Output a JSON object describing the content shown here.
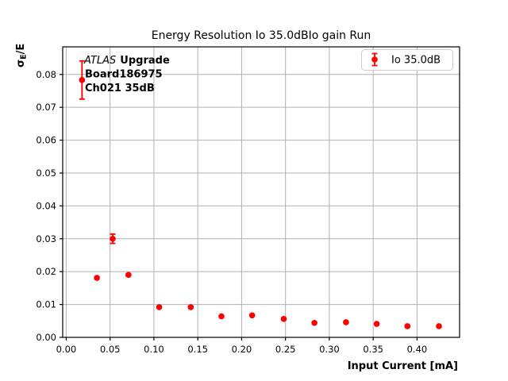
{
  "chart_data": {
    "type": "scatter",
    "title": "Energy Resolution Io 35.0dBIo gain Run",
    "xlabel": "Input Current [mA]",
    "ylabel": "σ_E/E",
    "ylabel_parts": {
      "base": "σ",
      "subscript": "E",
      "suffix": "/E"
    },
    "xlim": [
      -0.004,
      0.4485
    ],
    "ylim": [
      0,
      0.0884
    ],
    "xticks": [
      0.0,
      0.05,
      0.1,
      0.15,
      0.2,
      0.25,
      0.3,
      0.35,
      0.4
    ],
    "yticks": [
      0.0,
      0.01,
      0.02,
      0.03,
      0.04,
      0.05,
      0.06,
      0.07,
      0.08
    ],
    "xtick_labels": [
      "0.00",
      "0.05",
      "0.10",
      "0.15",
      "0.20",
      "0.25",
      "0.30",
      "0.35",
      "0.40"
    ],
    "ytick_labels": [
      "0.00",
      "0.01",
      "0.02",
      "0.03",
      "0.04",
      "0.05",
      "0.06",
      "0.07",
      "0.08"
    ],
    "grid": true,
    "legend": {
      "label": "Io 35.0dB",
      "position": "upper-right"
    },
    "series": [
      {
        "name": "Io 35.0dB",
        "color": "#ff0000",
        "marker": "circle",
        "x": [
          0.018,
          0.035,
          0.053,
          0.071,
          0.106,
          0.142,
          0.177,
          0.212,
          0.248,
          0.283,
          0.319,
          0.354,
          0.389,
          0.425
        ],
        "y": [
          0.0783,
          0.0181,
          0.03,
          0.019,
          0.0092,
          0.0092,
          0.0064,
          0.0067,
          0.0056,
          0.0044,
          0.0046,
          0.0041,
          0.0034,
          0.0034
        ],
        "yerr": [
          0.0058,
          0.0003,
          0.0014,
          0.0003,
          0.0002,
          0.0002,
          0.0002,
          0.0002,
          0.0002,
          0.0002,
          0.0002,
          0.0002,
          0.0002,
          0.0002
        ]
      }
    ],
    "annotation": {
      "line1_italic": "ATLAS",
      "line1_bold": "Upgrade",
      "line2": "Board186975",
      "line3": "Ch021 35dB"
    }
  },
  "colors": {
    "accent": "#ff0000",
    "grid": "#b0b0b0",
    "frame": "#000000",
    "legend_border": "#cccccc",
    "background": "#ffffff"
  }
}
